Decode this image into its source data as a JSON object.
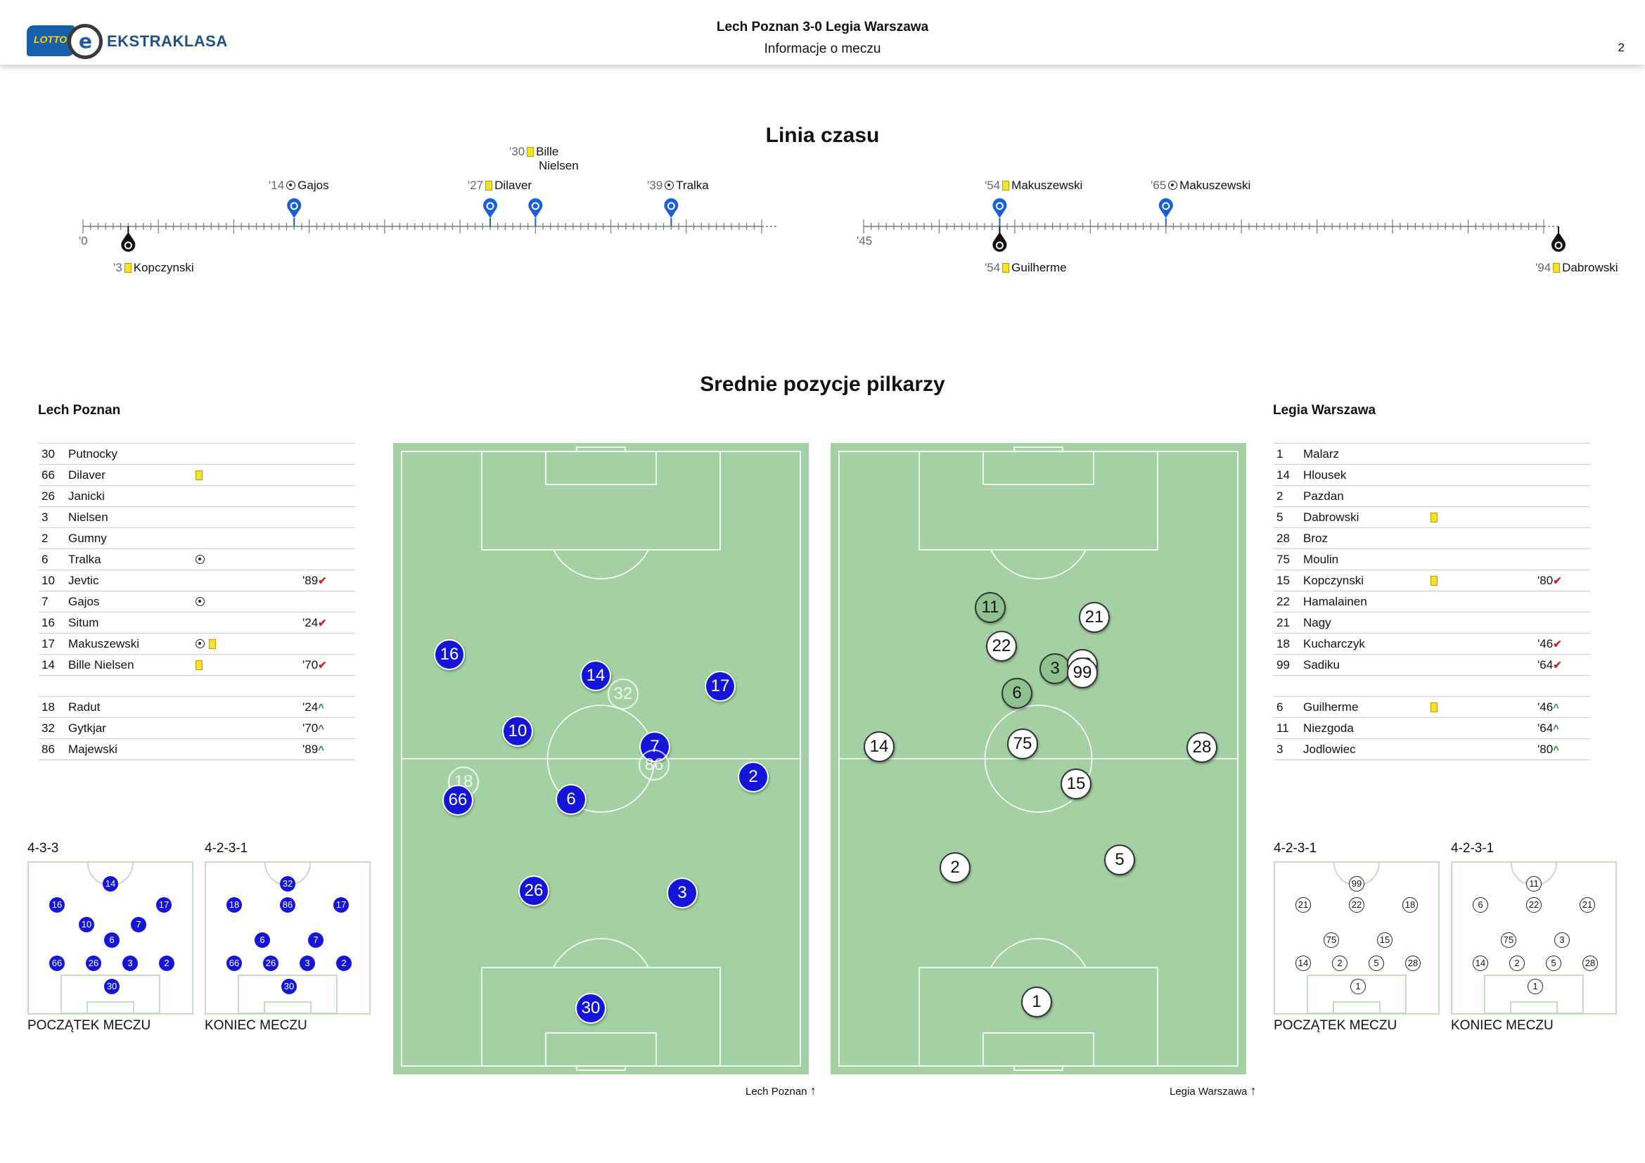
{
  "header": {
    "logo_badge": "LOTTO",
    "logo_text": "EKSTRAKLASA",
    "match_title": "Lech Poznan 3-0 Legia Warszawa",
    "subtitle": "Informacje o meczu",
    "page_number": "2"
  },
  "timeline": {
    "title": "Linia czasu",
    "first_half_start": "'0",
    "second_half_start": "'45",
    "home_events": [
      {
        "minute": "'14",
        "type": "goal",
        "player": "Gajos"
      },
      {
        "minute": "'27",
        "type": "yellow",
        "player": "Dilaver"
      },
      {
        "minute": "'30",
        "type": "yellow",
        "player": "Bille",
        "player2": "Nielsen"
      },
      {
        "minute": "'39",
        "type": "goal",
        "player": "Tralka"
      },
      {
        "minute": "'54",
        "type": "yellow",
        "player": "Makuszewski"
      },
      {
        "minute": "'65",
        "type": "goal",
        "player": "Makuszewski"
      }
    ],
    "away_events": [
      {
        "minute": "'3",
        "type": "yellow",
        "player": "Kopczynski"
      },
      {
        "minute": "'54",
        "type": "yellow",
        "player": "Guilherme"
      },
      {
        "minute": "'94",
        "type": "yellow",
        "player": "Dabrowski"
      }
    ]
  },
  "positions": {
    "title": "Srednie pozycje pilkarzy",
    "home_caption": "Lech Poznan",
    "away_caption": "Legia Warszawa"
  },
  "home": {
    "name": "Lech Poznan",
    "starters": [
      {
        "num": "30",
        "name": "Putnocky",
        "events": [],
        "sub": ""
      },
      {
        "num": "66",
        "name": "Dilaver",
        "events": [
          "yellow"
        ],
        "sub": ""
      },
      {
        "num": "26",
        "name": "Janicki",
        "events": [],
        "sub": ""
      },
      {
        "num": "3",
        "name": "Nielsen",
        "events": [],
        "sub": ""
      },
      {
        "num": "2",
        "name": "Gumny",
        "events": [],
        "sub": ""
      },
      {
        "num": "6",
        "name": "Tralka",
        "events": [
          "goal"
        ],
        "sub": ""
      },
      {
        "num": "10",
        "name": "Jevtic",
        "events": [],
        "sub": "'89",
        "sub_type": "off"
      },
      {
        "num": "7",
        "name": "Gajos",
        "events": [
          "goal"
        ],
        "sub": ""
      },
      {
        "num": "16",
        "name": "Situm",
        "events": [],
        "sub": "'24",
        "sub_type": "off"
      },
      {
        "num": "17",
        "name": "Makuszewski",
        "events": [
          "goal",
          "yellow"
        ],
        "sub": ""
      },
      {
        "num": "14",
        "name": "Bille Nielsen",
        "events": [
          "yellow"
        ],
        "sub": "'70",
        "sub_type": "off"
      }
    ],
    "subs": [
      {
        "num": "18",
        "name": "Radut",
        "events": [],
        "sub": "'24",
        "sub_type": "on"
      },
      {
        "num": "32",
        "name": "Gytkjar",
        "events": [],
        "sub": "'70",
        "sub_type": "on"
      },
      {
        "num": "86",
        "name": "Majewski",
        "events": [],
        "sub": "'89",
        "sub_type": "on"
      }
    ],
    "formation_start": "4-3-3",
    "formation_end": "4-2-3-1",
    "caption_start": "POCZĄTEK MECZU",
    "caption_end": "KONIEC MECZU"
  },
  "away": {
    "name": "Legia Warszawa",
    "starters": [
      {
        "num": "1",
        "name": "Malarz",
        "events": [],
        "sub": ""
      },
      {
        "num": "14",
        "name": "Hlousek",
        "events": [],
        "sub": ""
      },
      {
        "num": "2",
        "name": "Pazdan",
        "events": [],
        "sub": ""
      },
      {
        "num": "5",
        "name": "Dabrowski",
        "events": [
          "yellow"
        ],
        "sub": ""
      },
      {
        "num": "28",
        "name": "Broz",
        "events": [],
        "sub": ""
      },
      {
        "num": "75",
        "name": "Moulin",
        "events": [],
        "sub": ""
      },
      {
        "num": "15",
        "name": "Kopczynski",
        "events": [
          "yellow"
        ],
        "sub": "'80",
        "sub_type": "off"
      },
      {
        "num": "22",
        "name": "Hamalainen",
        "events": [],
        "sub": ""
      },
      {
        "num": "21",
        "name": "Nagy",
        "events": [],
        "sub": ""
      },
      {
        "num": "18",
        "name": "Kucharczyk",
        "events": [],
        "sub": "'46",
        "sub_type": "off"
      },
      {
        "num": "99",
        "name": "Sadiku",
        "events": [],
        "sub": "'64",
        "sub_type": "off"
      }
    ],
    "subs": [
      {
        "num": "6",
        "name": "Guilherme",
        "events": [
          "yellow"
        ],
        "sub": "'46",
        "sub_type": "on"
      },
      {
        "num": "11",
        "name": "Niezgoda",
        "events": [],
        "sub": "'64",
        "sub_type": "on"
      },
      {
        "num": "3",
        "name": "Jodlowiec",
        "events": [],
        "sub": "'80",
        "sub_type": "on"
      }
    ],
    "formation_start": "4-2-3-1",
    "formation_end": "4-2-3-1",
    "caption_start": "POCZĄTEK MECZU",
    "caption_end": "KONIEC MECZU"
  },
  "home_pitch_players": [
    {
      "num": "16",
      "sub": false
    },
    {
      "num": "14",
      "sub": false
    },
    {
      "num": "32",
      "sub": true
    },
    {
      "num": "17",
      "sub": false
    },
    {
      "num": "10",
      "sub": false
    },
    {
      "num": "7",
      "sub": false
    },
    {
      "num": "86",
      "sub": true
    },
    {
      "num": "18",
      "sub": true
    },
    {
      "num": "66",
      "sub": false
    },
    {
      "num": "6",
      "sub": false
    },
    {
      "num": "2",
      "sub": false
    },
    {
      "num": "26",
      "sub": false
    },
    {
      "num": "3",
      "sub": false
    },
    {
      "num": "30",
      "sub": false
    }
  ],
  "away_pitch_players": [
    {
      "num": "11",
      "sub": true
    },
    {
      "num": "21",
      "sub": false
    },
    {
      "num": "22",
      "sub": false
    },
    {
      "num": "3",
      "sub": true
    },
    {
      "num": "18",
      "sub": false
    },
    {
      "num": "99",
      "sub": false
    },
    {
      "num": "6",
      "sub": true
    },
    {
      "num": "14",
      "sub": false
    },
    {
      "num": "75",
      "sub": false
    },
    {
      "num": "28",
      "sub": false
    },
    {
      "num": "15",
      "sub": false
    },
    {
      "num": "2",
      "sub": false
    },
    {
      "num": "5",
      "sub": false
    },
    {
      "num": "1",
      "sub": false
    }
  ],
  "home_form_start": [
    "14",
    "16",
    "17",
    "10",
    "7",
    "6",
    "66",
    "26",
    "3",
    "2",
    "30"
  ],
  "home_form_end": [
    "32",
    "18",
    "86",
    "17",
    "6",
    "7",
    "66",
    "26",
    "3",
    "2",
    "30"
  ],
  "away_form_start": [
    "99",
    "21",
    "22",
    "18",
    "75",
    "15",
    "14",
    "2",
    "5",
    "28",
    "1"
  ],
  "away_form_end": [
    "11",
    "6",
    "22",
    "21",
    "75",
    "3",
    "14",
    "2",
    "5",
    "28",
    "1"
  ],
  "colors": {
    "home": "#1515d8",
    "away": "#ffffff",
    "pitch": "#a3d1a3",
    "yellow_card": "#f5e12b",
    "marker_home": "#1a5fd6",
    "marker_away": "#111111"
  }
}
